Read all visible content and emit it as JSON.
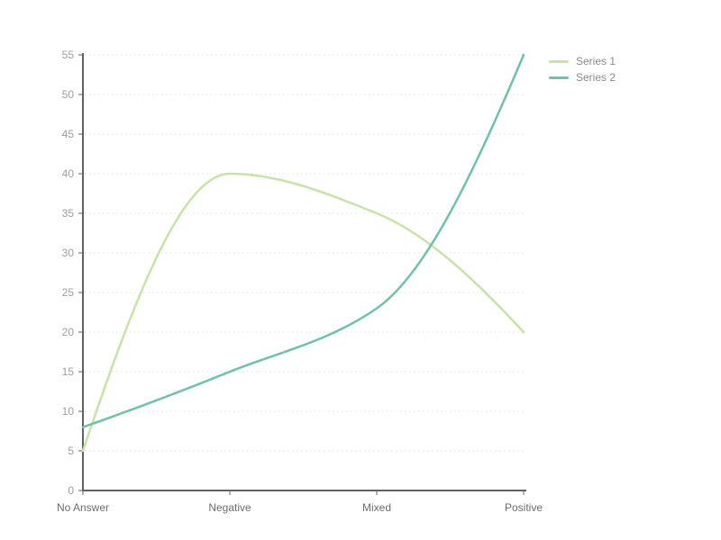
{
  "chart_data": {
    "type": "line",
    "smooth": true,
    "title": "",
    "xlabel": "",
    "ylabel": "",
    "categories": [
      "No Answer",
      "Negative",
      "Mixed",
      "Positive"
    ],
    "series": [
      {
        "name": "Series 1",
        "values": [
          5,
          40,
          35,
          20
        ],
        "color": "#c6e3a8"
      },
      {
        "name": "Series 2",
        "values": [
          8,
          15,
          23,
          55
        ],
        "color": "#6fc3a4"
      }
    ],
    "ylim": [
      0,
      55
    ],
    "ytick_step": 5,
    "yticks": [
      0,
      5,
      10,
      15,
      20,
      25,
      30,
      35,
      40,
      45,
      50,
      55
    ],
    "grid": "horizontal-dotted",
    "legend_position": "top-right"
  },
  "legend": {
    "items": [
      {
        "label": "Series 1"
      },
      {
        "label": "Series 2"
      }
    ]
  },
  "colors": {
    "background": "#ffffff",
    "axis": "#616161",
    "grid": "#e0e0e0",
    "y_tick_label": "#9e9e9e",
    "x_tick_label": "#6d6d6d",
    "legend_text": "#8b8b8b"
  }
}
